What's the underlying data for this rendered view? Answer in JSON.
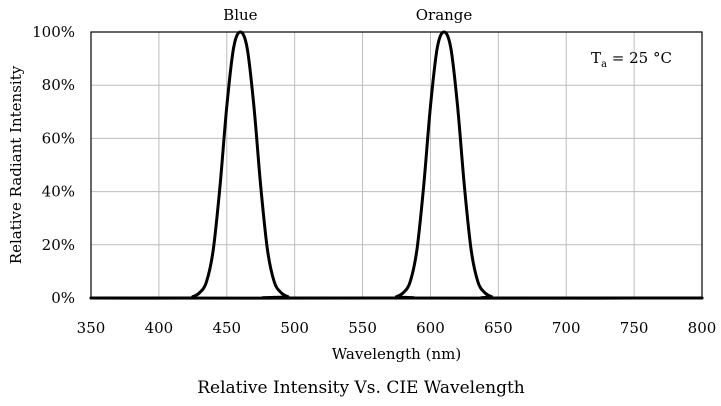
{
  "chart_data": {
    "type": "line",
    "title": "",
    "caption": "Relative Intensity Vs. CIE Wavelength",
    "xlabel": "Wavelength (nm)",
    "ylabel": "Relative Radiant Intensity",
    "xlim": [
      350,
      800
    ],
    "ylim": [
      0,
      100
    ],
    "x_ticks": [
      350,
      400,
      450,
      500,
      550,
      600,
      650,
      700,
      750,
      800
    ],
    "y_ticks": [
      0,
      20,
      40,
      60,
      80,
      100
    ],
    "x_tick_labels": [
      "350",
      "400",
      "450",
      "500",
      "550",
      "600",
      "650",
      "700",
      "750",
      "800"
    ],
    "y_tick_labels": [
      "0%",
      "20%",
      "40%",
      "60%",
      "80%",
      "100%"
    ],
    "grid": true,
    "series": [
      {
        "name": "Blue",
        "color": "#000000",
        "x": [
          350,
          420,
          425,
          430,
          435,
          440,
          445,
          450,
          455,
          460,
          465,
          470,
          475,
          480,
          485,
          490,
          495,
          500,
          800
        ],
        "y": [
          0,
          0,
          0.5,
          2,
          6,
          18,
          42,
          72,
          94,
          100,
          94,
          72,
          42,
          18,
          6,
          2,
          0.5,
          0,
          0
        ]
      },
      {
        "name": "Orange",
        "color": "#000000",
        "x": [
          350,
          570,
          575,
          580,
          585,
          590,
          595,
          600,
          605,
          610,
          615,
          620,
          625,
          630,
          635,
          640,
          645,
          650,
          800
        ],
        "y": [
          0,
          0,
          0.5,
          2,
          6,
          18,
          42,
          72,
          94,
          100,
          94,
          72,
          42,
          18,
          6,
          2,
          0.5,
          0,
          0
        ]
      }
    ],
    "peak_labels": [
      {
        "text": "Blue",
        "x": 460
      },
      {
        "text": "Orange",
        "x": 610
      }
    ],
    "annotation": {
      "main": "T",
      "subscript": "a",
      "rest": " = 25 °C"
    }
  }
}
